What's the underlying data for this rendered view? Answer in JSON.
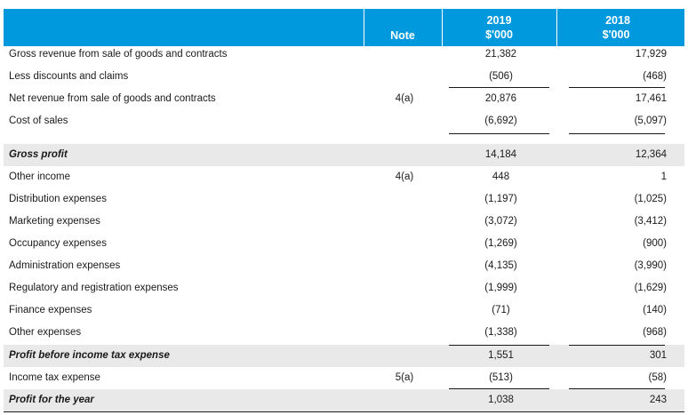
{
  "header": {
    "note": "Note",
    "y2019": "2019",
    "unit2019": "$'000",
    "y2018": "2018",
    "unit2018": "$'000"
  },
  "rows": [
    {
      "label": "Gross revenue from sale of goods and contracts",
      "note": "",
      "v2019": "21,382",
      "v2018": "17,929"
    },
    {
      "label": "Less discounts and claims",
      "note": "",
      "v2019": "(506)",
      "v2018": "(468)"
    },
    {
      "label": "Net revenue from sale of goods and contracts",
      "note": "4(a)",
      "v2019": "20,876",
      "v2018": "17,461"
    },
    {
      "label": "Cost of sales",
      "note": "",
      "v2019": "(6,692)",
      "v2018": "(5,097)"
    },
    {
      "label": "Gross profit",
      "note": "",
      "v2019": "14,184",
      "v2018": "12,364"
    },
    {
      "label": "Other income",
      "note": "4(a)",
      "v2019": "448",
      "v2018": "1"
    },
    {
      "label": "Distribution expenses",
      "note": "",
      "v2019": "(1,197)",
      "v2018": "(1,025)"
    },
    {
      "label": "Marketing expenses",
      "note": "",
      "v2019": "(3,072)",
      "v2018": "(3,412)"
    },
    {
      "label": "Occupancy expenses",
      "note": "",
      "v2019": "(1,269)",
      "v2018": "(900)"
    },
    {
      "label": "Administration expenses",
      "note": "",
      "v2019": "(4,135)",
      "v2018": "(3,990)"
    },
    {
      "label": "Regulatory and registration expenses",
      "note": "",
      "v2019": "(1,999)",
      "v2018": "(1,629)"
    },
    {
      "label": "Finance expenses",
      "note": "",
      "v2019": "(71)",
      "v2018": "(140)"
    },
    {
      "label": "Other expenses",
      "note": "",
      "v2019": "(1,338)",
      "v2018": "(968)"
    },
    {
      "label": "Profit before income tax expense",
      "note": "",
      "v2019": "1,551",
      "v2018": "301"
    },
    {
      "label": "Income tax expense",
      "note": "5(a)",
      "v2019": "(513)",
      "v2018": "(58)"
    },
    {
      "label": "Profit for the year",
      "note": "",
      "v2019": "1,038",
      "v2018": "243"
    }
  ],
  "colors": {
    "header": "#0099dd",
    "shade": "#e9e9e9"
  }
}
